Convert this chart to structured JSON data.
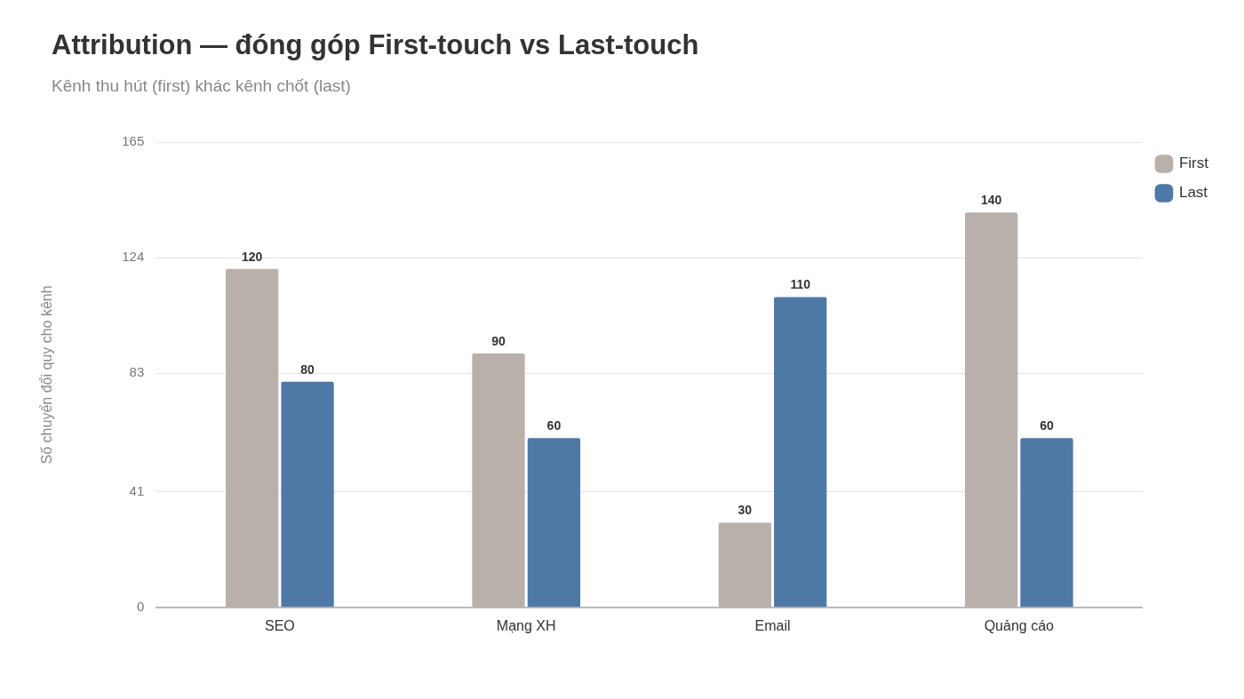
{
  "chart_data": {
    "type": "bar",
    "title": "Attribution — đóng góp First-touch vs Last-touch",
    "subtitle": "Kênh thu hút (first) khác kênh chốt (last)",
    "ylabel": "Số chuyển đổi quy cho kênh",
    "categories": [
      "SEO",
      "Mạng XH",
      "Email",
      "Quảng cáo"
    ],
    "series": [
      {
        "name": "First",
        "color": "#b9b0ab",
        "values": [
          120,
          90,
          30,
          140
        ]
      },
      {
        "name": "Last",
        "color": "#4e79a7",
        "values": [
          80,
          60,
          110,
          60
        ]
      }
    ],
    "ylim": [
      0,
      165
    ],
    "yticks": [
      0,
      41,
      83,
      124,
      165
    ],
    "grid": "y",
    "legend": "top right",
    "data_labels": true
  }
}
